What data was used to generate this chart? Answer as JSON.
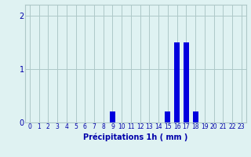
{
  "hours": [
    0,
    1,
    2,
    3,
    4,
    5,
    6,
    7,
    8,
    9,
    10,
    11,
    12,
    13,
    14,
    15,
    16,
    17,
    18,
    19,
    20,
    21,
    22,
    23
  ],
  "values": [
    0,
    0,
    0,
    0,
    0,
    0,
    0,
    0,
    0,
    0.2,
    0,
    0,
    0,
    0,
    0,
    0.2,
    1.5,
    1.5,
    0.2,
    0,
    0,
    0,
    0,
    0
  ],
  "bar_color": "#0000dd",
  "background_color": "#dff2f2",
  "grid_color": "#aec8c8",
  "text_color": "#0000aa",
  "xlabel": "Précipitations 1h ( mm )",
  "ylim": [
    0,
    2.2
  ],
  "yticks": [
    0,
    1,
    2
  ],
  "xlabel_fontsize": 7,
  "tick_fontsize": 5.5,
  "ytick_fontsize": 7
}
